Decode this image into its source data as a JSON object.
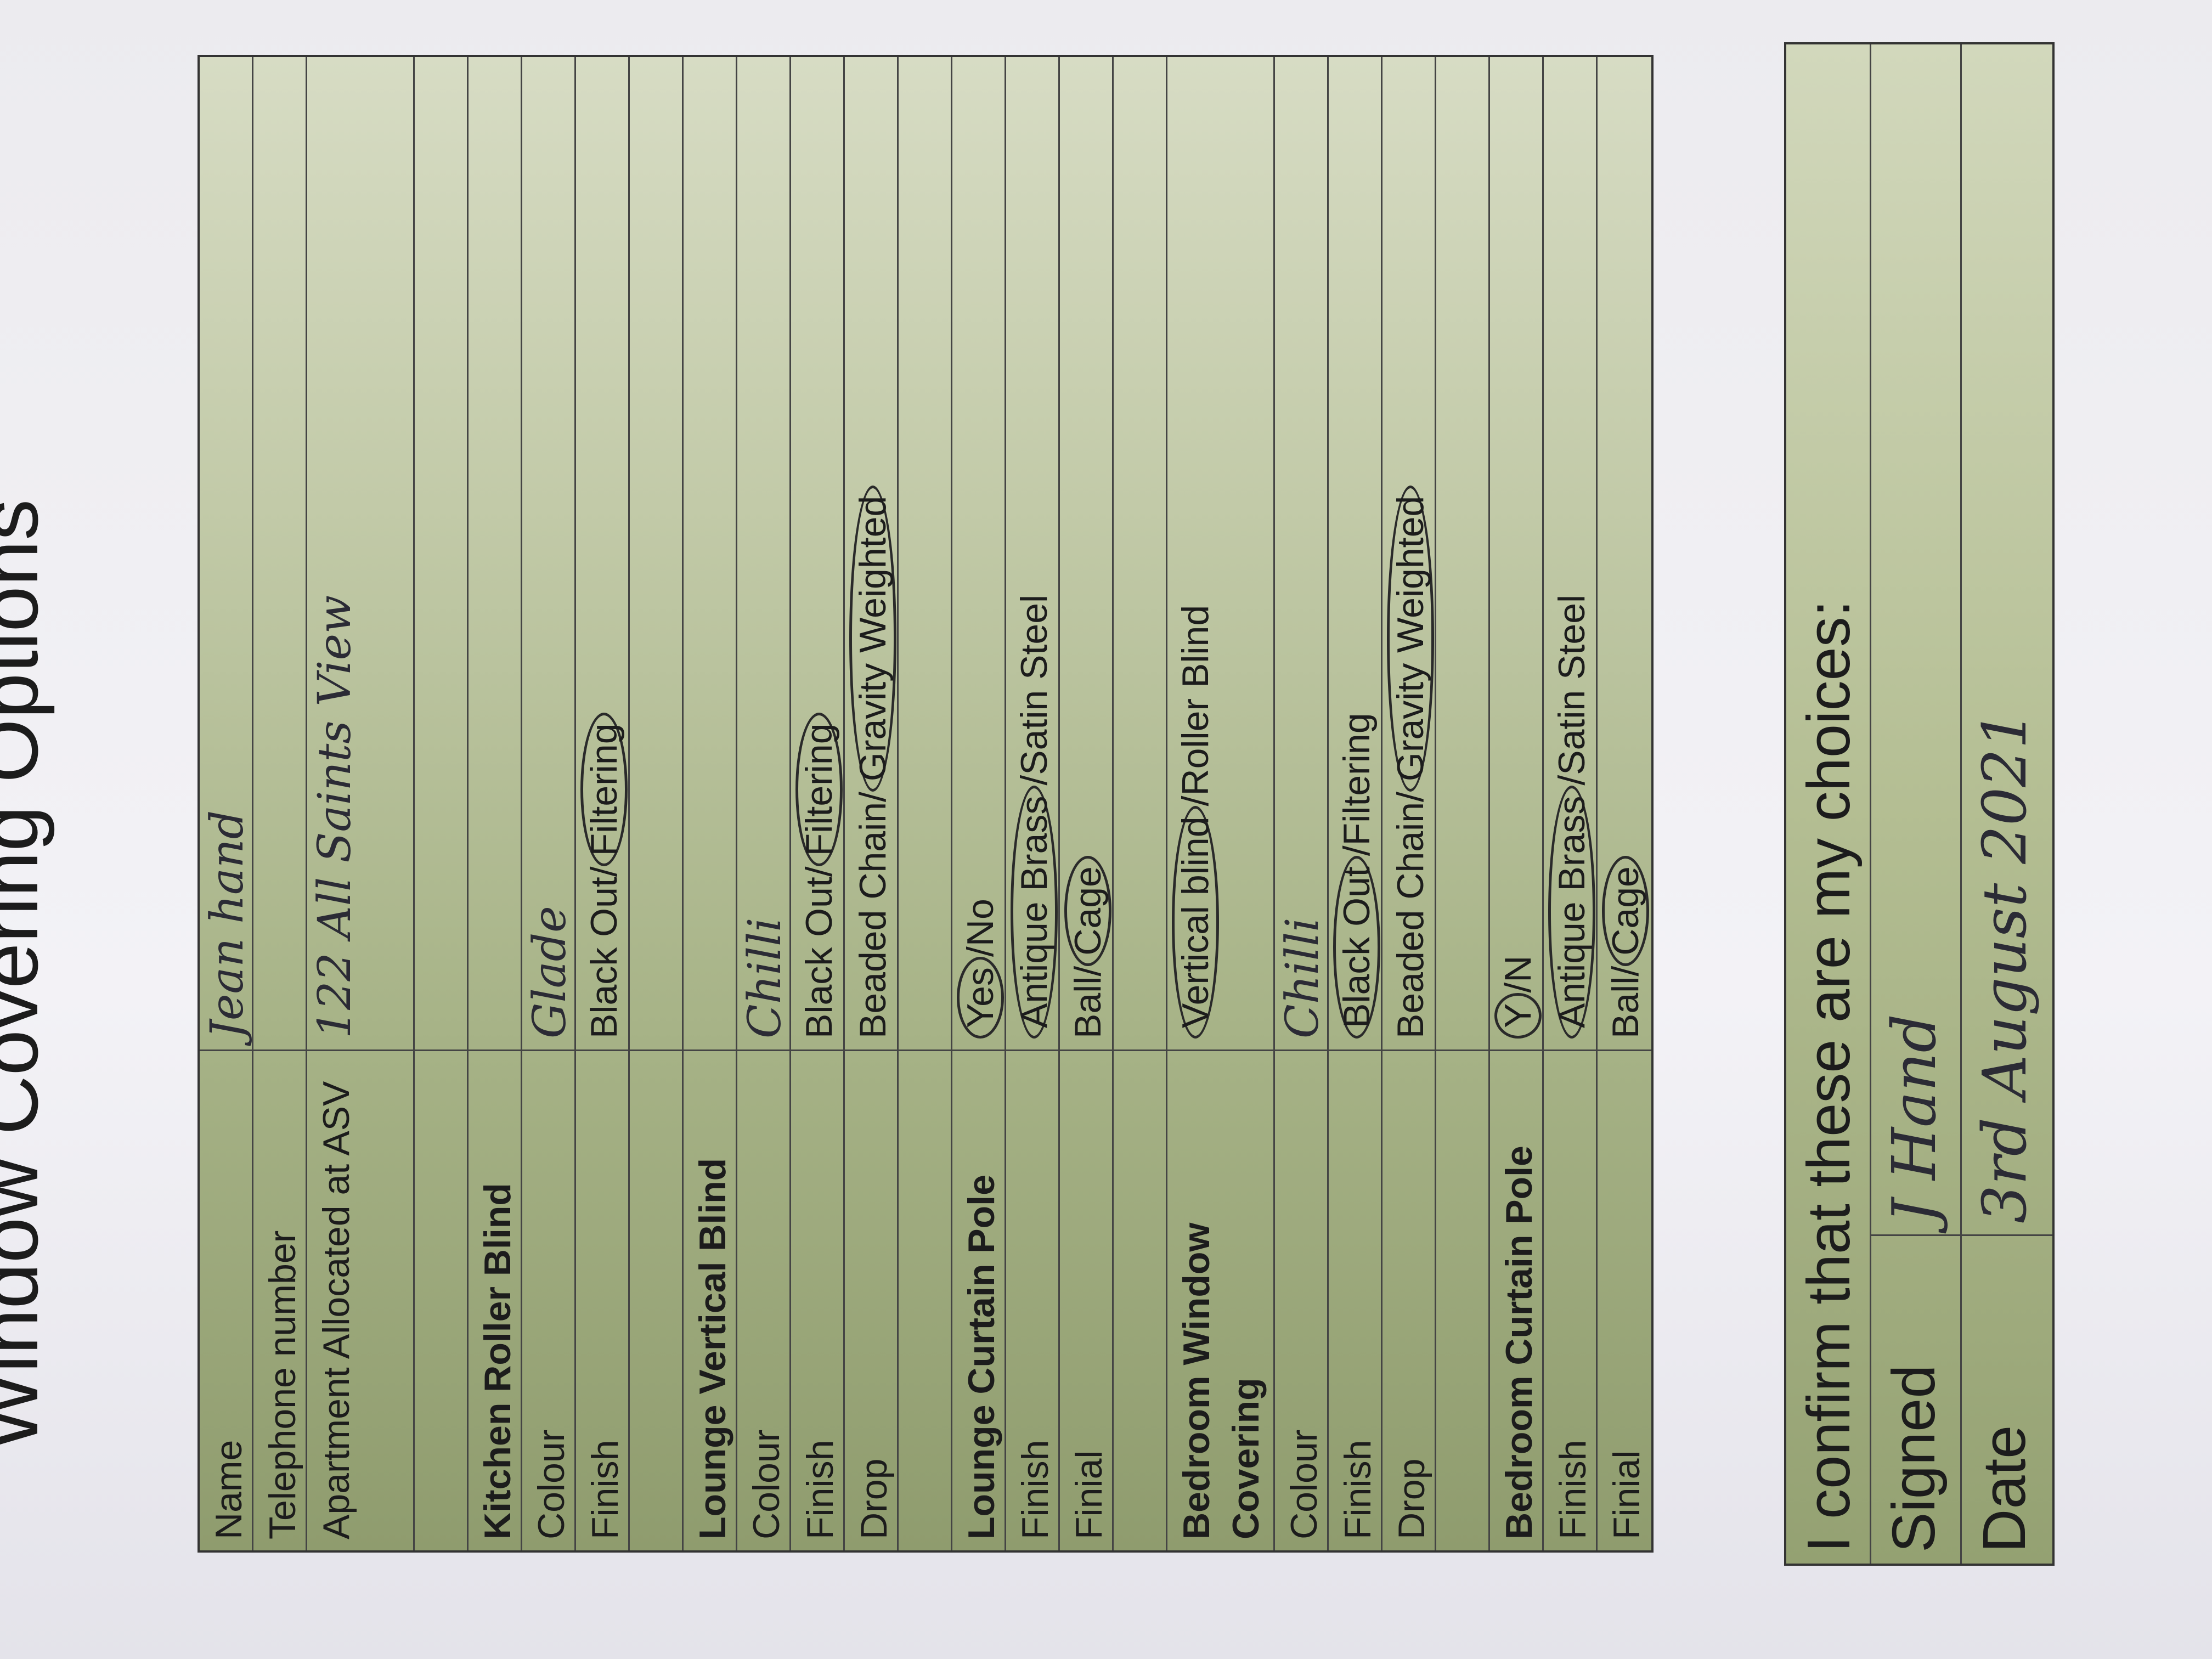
{
  "title": "Window Covering Options",
  "rows": [
    {
      "label": "Name",
      "bold": false,
      "hand": "Jean hand"
    },
    {
      "label": "Telephone number",
      "bold": false
    },
    {
      "label": "Apartment Allocated at ASV",
      "bold": false,
      "dbl": true,
      "hand": "122 All Saints View"
    },
    {
      "label": "",
      "bold": false
    },
    {
      "label": "Kitchen Roller Blind",
      "bold": true
    },
    {
      "label": "Colour",
      "bold": false,
      "hand": "Glade"
    },
    {
      "label": "Finish",
      "bold": false,
      "options": [
        {
          "text": "Black Out",
          "circled": false
        },
        {
          "text": "Filtering",
          "circled": true
        }
      ]
    },
    {
      "label": "",
      "bold": false
    },
    {
      "label": "Lounge Vertical Blind",
      "bold": true
    },
    {
      "label": "Colour",
      "bold": false,
      "hand": "Chilli"
    },
    {
      "label": "Finish",
      "bold": false,
      "options": [
        {
          "text": "Black Out",
          "circled": false
        },
        {
          "text": "Filtering",
          "circled": true
        }
      ]
    },
    {
      "label": "Drop",
      "bold": false,
      "options": [
        {
          "text": "Beaded Chain",
          "circled": false
        },
        {
          "text": "Gravity Weighted",
          "circled": true
        }
      ]
    },
    {
      "label": "",
      "bold": false
    },
    {
      "label": "Lounge Curtain Pole",
      "bold": true,
      "options": [
        {
          "text": "Yes",
          "circled": true
        },
        {
          "text": "No",
          "circled": false
        }
      ]
    },
    {
      "label": "Finish",
      "bold": false,
      "options": [
        {
          "text": "Antique Brass",
          "circled": true
        },
        {
          "text": "Satin Steel",
          "circled": false
        }
      ]
    },
    {
      "label": "Finial",
      "bold": false,
      "options": [
        {
          "text": "Ball",
          "circled": false
        },
        {
          "text": "Cage",
          "circled": true
        }
      ]
    },
    {
      "label": "",
      "bold": false
    },
    {
      "label": "Bedroom Window Covering",
      "bold": true,
      "dbl": true,
      "options": [
        {
          "text": "Vertical blind",
          "circled": true
        },
        {
          "text": "Roller Blind",
          "circled": false
        }
      ]
    },
    {
      "label": "Colour",
      "bold": false,
      "hand": "Chilli"
    },
    {
      "label": "Finish",
      "bold": false,
      "options": [
        {
          "text": "Black Out",
          "circled": true
        },
        {
          "text": "Filtering",
          "circled": false
        }
      ]
    },
    {
      "label": "Drop",
      "bold": false,
      "options": [
        {
          "text": "Beaded Chain",
          "circled": false
        },
        {
          "text": "Gravity Weighted",
          "circled": true
        }
      ]
    },
    {
      "label": "",
      "bold": false
    },
    {
      "label": "Bedroom Curtain Pole",
      "bold": true,
      "options": [
        {
          "text": "Y",
          "circled": true
        },
        {
          "text": "N",
          "circled": false
        }
      ]
    },
    {
      "label": "Finish",
      "bold": false,
      "options": [
        {
          "text": "Antique Brass",
          "circled": true
        },
        {
          "text": "Satin Steel",
          "circled": false
        }
      ]
    },
    {
      "label": "Finial",
      "bold": false,
      "options": [
        {
          "text": "Ball",
          "circled": false
        },
        {
          "text": "Cage",
          "circled": true
        }
      ]
    }
  ],
  "confirm": {
    "heading": "I confirm that these are my choices:",
    "signed_label": "Signed",
    "signed_value": "J Hand",
    "date_label": "Date",
    "date_value": "3rd August 2021"
  },
  "colors": {
    "table_green": "#a7b387",
    "ink": "#2a2a2a"
  }
}
